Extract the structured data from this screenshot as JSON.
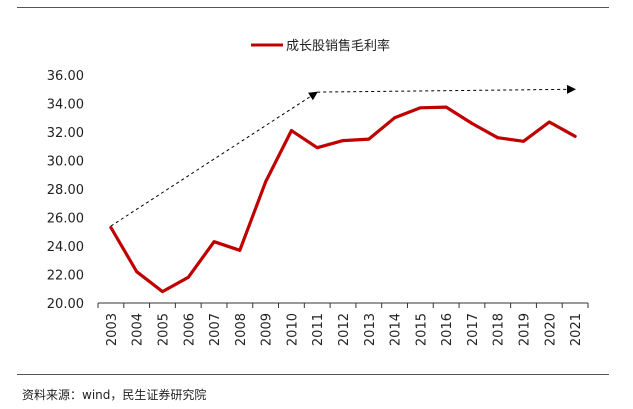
{
  "chart_data": {
    "type": "line",
    "legend": "成长股销售毛利率",
    "legend_placement": "top-center",
    "series": [
      {
        "name": "成长股销售毛利率",
        "color": "#c00000",
        "x": [
          "2003",
          "2004",
          "2005",
          "2006",
          "2007",
          "2008",
          "2009",
          "2010",
          "2011",
          "2012",
          "2013",
          "2014",
          "2015",
          "2016",
          "2017",
          "2018",
          "2019",
          "2020",
          "2021"
        ],
        "values": [
          25.3,
          22.2,
          20.8,
          21.8,
          24.3,
          23.7,
          28.5,
          32.1,
          30.9,
          31.4,
          31.5,
          33.0,
          33.7,
          33.75,
          32.6,
          31.6,
          31.35,
          32.7,
          31.7
        ]
      }
    ],
    "categories": [
      "2003",
      "2004",
      "2005",
      "2006",
      "2007",
      "2008",
      "2009",
      "2010",
      "2011",
      "2012",
      "2013",
      "2014",
      "2015",
      "2016",
      "2017",
      "2018",
      "2019",
      "2020",
      "2021"
    ],
    "y_ticks": [
      "20.00",
      "22.00",
      "24.00",
      "26.00",
      "28.00",
      "30.00",
      "32.00",
      "34.00",
      "36.00"
    ],
    "ylim": [
      20,
      36
    ],
    "grid": false,
    "annotations": [
      {
        "type": "dashed-arrow",
        "from": {
          "x": "2003",
          "y": 25.4
        },
        "to": {
          "x": "2011",
          "y": 34.8
        }
      },
      {
        "type": "dashed-arrow",
        "from": {
          "x": "2011",
          "y": 34.8
        },
        "to": {
          "x": "2021",
          "y": 35.0
        }
      }
    ]
  },
  "source": "资料来源：wind，民生证券研究院"
}
